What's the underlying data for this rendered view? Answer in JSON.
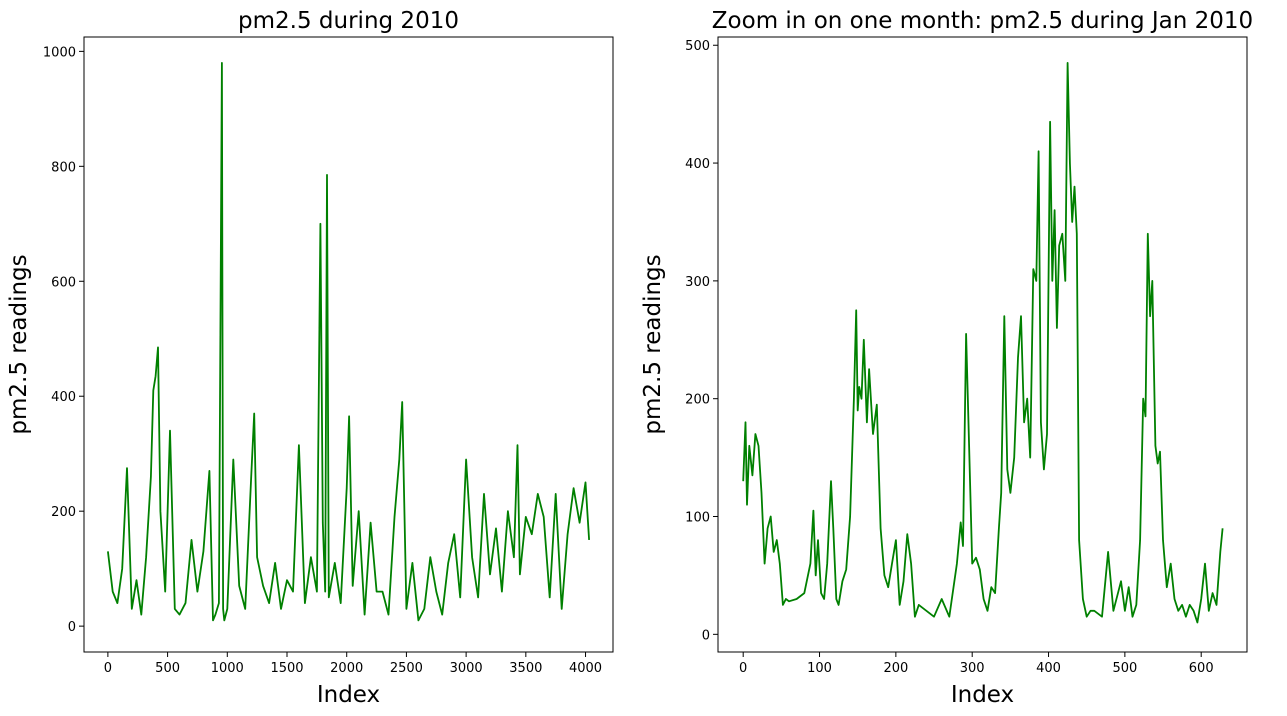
{
  "chart_data": [
    {
      "type": "line",
      "title": "pm2.5 during 2010",
      "xlabel": "Index",
      "ylabel": "pm2.5 readings",
      "xlim": [
        -200,
        4230
      ],
      "ylim": [
        -45,
        1025
      ],
      "xticks": [
        0,
        500,
        1000,
        1500,
        2000,
        2500,
        3000,
        3500,
        4000
      ],
      "yticks": [
        0,
        200,
        400,
        600,
        800,
        1000
      ],
      "grid": false,
      "color": "#008000",
      "series": [
        {
          "x": [
            0,
            40,
            80,
            120,
            160,
            200,
            240,
            280,
            320,
            360,
            380,
            400,
            420,
            440,
            480,
            520,
            560,
            600,
            650,
            700,
            750,
            800,
            850,
            880,
            900,
            930,
            955,
            965,
            975,
            1000,
            1050,
            1100,
            1150,
            1200,
            1225,
            1250,
            1300,
            1350,
            1400,
            1450,
            1500,
            1550,
            1600,
            1650,
            1700,
            1750,
            1780,
            1800,
            1820,
            1835,
            1850,
            1900,
            1950,
            2000,
            2020,
            2050,
            2100,
            2150,
            2200,
            2250,
            2300,
            2350,
            2400,
            2440,
            2465,
            2500,
            2550,
            2600,
            2650,
            2700,
            2750,
            2800,
            2850,
            2900,
            2950,
            3000,
            3050,
            3100,
            3150,
            3200,
            3250,
            3300,
            3350,
            3400,
            3430,
            3450,
            3500,
            3550,
            3600,
            3650,
            3700,
            3750,
            3800,
            3850,
            3900,
            3950,
            4000,
            4030
          ],
          "y": [
            130,
            60,
            40,
            100,
            275,
            30,
            80,
            20,
            120,
            260,
            410,
            435,
            485,
            200,
            60,
            340,
            30,
            20,
            40,
            150,
            60,
            130,
            270,
            10,
            20,
            40,
            980,
            30,
            10,
            30,
            290,
            70,
            30,
            260,
            370,
            120,
            70,
            40,
            110,
            30,
            80,
            60,
            315,
            40,
            120,
            60,
            700,
            180,
            60,
            785,
            50,
            110,
            40,
            240,
            365,
            70,
            200,
            20,
            180,
            60,
            60,
            20,
            190,
            290,
            390,
            30,
            110,
            10,
            30,
            120,
            60,
            20,
            110,
            160,
            50,
            290,
            120,
            50,
            230,
            90,
            170,
            60,
            200,
            120,
            315,
            90,
            190,
            160,
            230,
            190,
            50,
            230,
            30,
            160,
            240,
            180,
            250,
            150
          ]
        }
      ]
    },
    {
      "type": "line",
      "title": "Zoom in on one month: pm2.5 during Jan 2010",
      "xlabel": "Index",
      "ylabel": "pm2.5 readings",
      "xlim": [
        -33,
        660
      ],
      "ylim": [
        -15,
        507
      ],
      "xticks": [
        0,
        100,
        200,
        300,
        400,
        500,
        600
      ],
      "yticks": [
        0,
        100,
        200,
        300,
        400,
        500
      ],
      "grid": false,
      "color": "#008000",
      "series": [
        {
          "x": [
            0,
            3,
            5,
            8,
            12,
            16,
            20,
            24,
            28,
            32,
            36,
            40,
            44,
            48,
            52,
            56,
            60,
            70,
            80,
            88,
            92,
            95,
            98,
            102,
            106,
            110,
            115,
            118,
            122,
            125,
            130,
            135,
            140,
            145,
            148,
            150,
            152,
            155,
            158,
            162,
            165,
            170,
            175,
            180,
            185,
            190,
            195,
            200,
            205,
            210,
            215,
            220,
            225,
            230,
            240,
            250,
            260,
            270,
            280,
            285,
            288,
            292,
            296,
            300,
            305,
            310,
            315,
            320,
            325,
            330,
            335,
            338,
            342,
            346,
            350,
            355,
            360,
            364,
            368,
            372,
            376,
            380,
            384,
            387,
            390,
            394,
            398,
            402,
            405,
            408,
            411,
            414,
            418,
            422,
            425,
            428,
            431,
            434,
            437,
            440,
            445,
            450,
            455,
            460,
            470,
            478,
            485,
            495,
            500,
            505,
            510,
            515,
            520,
            524,
            527,
            530,
            533,
            536,
            540,
            543,
            546,
            550,
            555,
            560,
            565,
            570,
            575,
            580,
            585,
            590,
            595,
            600,
            605,
            610,
            615,
            620,
            625,
            628
          ],
          "y": [
            130,
            180,
            110,
            160,
            135,
            170,
            160,
            120,
            60,
            90,
            100,
            70,
            80,
            60,
            25,
            30,
            28,
            30,
            35,
            60,
            105,
            50,
            80,
            35,
            30,
            60,
            130,
            90,
            30,
            25,
            45,
            55,
            100,
            200,
            275,
            190,
            210,
            200,
            250,
            180,
            225,
            170,
            195,
            90,
            50,
            40,
            60,
            80,
            25,
            45,
            85,
            60,
            15,
            25,
            20,
            15,
            30,
            15,
            60,
            95,
            75,
            255,
            160,
            60,
            65,
            55,
            30,
            20,
            40,
            35,
            90,
            120,
            270,
            140,
            120,
            150,
            235,
            270,
            180,
            200,
            150,
            310,
            300,
            410,
            180,
            140,
            170,
            435,
            300,
            360,
            260,
            330,
            340,
            300,
            485,
            400,
            350,
            380,
            340,
            80,
            30,
            15,
            20,
            20,
            15,
            70,
            20,
            45,
            20,
            40,
            15,
            25,
            80,
            200,
            185,
            340,
            270,
            300,
            160,
            145,
            155,
            80,
            40,
            60,
            30,
            20,
            25,
            15,
            25,
            20,
            10,
            30,
            60,
            20,
            35,
            25,
            70,
            90
          ]
        }
      ]
    }
  ]
}
